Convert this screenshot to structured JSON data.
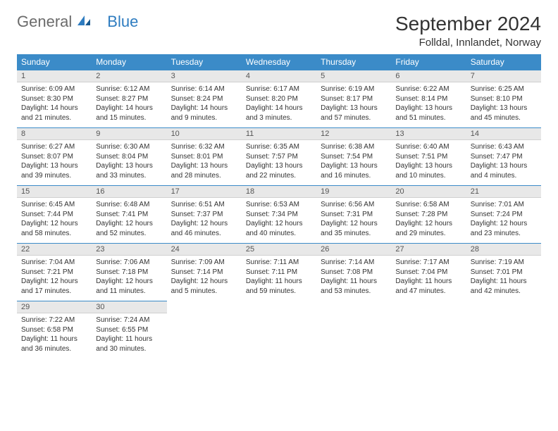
{
  "logo": {
    "gray": "General",
    "blue": "Blue"
  },
  "title": "September 2024",
  "location": "Folldal, Innlandet, Norway",
  "colors": {
    "header_bg": "#3b8bc8",
    "header_text": "#ffffff",
    "daynum_bg": "#e8e8e8",
    "cell_border": "#3b8bc8",
    "logo_gray": "#6b6b6b",
    "logo_blue": "#2e7cc0"
  },
  "day_names": [
    "Sunday",
    "Monday",
    "Tuesday",
    "Wednesday",
    "Thursday",
    "Friday",
    "Saturday"
  ],
  "days": [
    {
      "n": 1,
      "sunrise": "6:09 AM",
      "sunset": "8:30 PM",
      "daylight": "14 hours and 21 minutes."
    },
    {
      "n": 2,
      "sunrise": "6:12 AM",
      "sunset": "8:27 PM",
      "daylight": "14 hours and 15 minutes."
    },
    {
      "n": 3,
      "sunrise": "6:14 AM",
      "sunset": "8:24 PM",
      "daylight": "14 hours and 9 minutes."
    },
    {
      "n": 4,
      "sunrise": "6:17 AM",
      "sunset": "8:20 PM",
      "daylight": "14 hours and 3 minutes."
    },
    {
      "n": 5,
      "sunrise": "6:19 AM",
      "sunset": "8:17 PM",
      "daylight": "13 hours and 57 minutes."
    },
    {
      "n": 6,
      "sunrise": "6:22 AM",
      "sunset": "8:14 PM",
      "daylight": "13 hours and 51 minutes."
    },
    {
      "n": 7,
      "sunrise": "6:25 AM",
      "sunset": "8:10 PM",
      "daylight": "13 hours and 45 minutes."
    },
    {
      "n": 8,
      "sunrise": "6:27 AM",
      "sunset": "8:07 PM",
      "daylight": "13 hours and 39 minutes."
    },
    {
      "n": 9,
      "sunrise": "6:30 AM",
      "sunset": "8:04 PM",
      "daylight": "13 hours and 33 minutes."
    },
    {
      "n": 10,
      "sunrise": "6:32 AM",
      "sunset": "8:01 PM",
      "daylight": "13 hours and 28 minutes."
    },
    {
      "n": 11,
      "sunrise": "6:35 AM",
      "sunset": "7:57 PM",
      "daylight": "13 hours and 22 minutes."
    },
    {
      "n": 12,
      "sunrise": "6:38 AM",
      "sunset": "7:54 PM",
      "daylight": "13 hours and 16 minutes."
    },
    {
      "n": 13,
      "sunrise": "6:40 AM",
      "sunset": "7:51 PM",
      "daylight": "13 hours and 10 minutes."
    },
    {
      "n": 14,
      "sunrise": "6:43 AM",
      "sunset": "7:47 PM",
      "daylight": "13 hours and 4 minutes."
    },
    {
      "n": 15,
      "sunrise": "6:45 AM",
      "sunset": "7:44 PM",
      "daylight": "12 hours and 58 minutes."
    },
    {
      "n": 16,
      "sunrise": "6:48 AM",
      "sunset": "7:41 PM",
      "daylight": "12 hours and 52 minutes."
    },
    {
      "n": 17,
      "sunrise": "6:51 AM",
      "sunset": "7:37 PM",
      "daylight": "12 hours and 46 minutes."
    },
    {
      "n": 18,
      "sunrise": "6:53 AM",
      "sunset": "7:34 PM",
      "daylight": "12 hours and 40 minutes."
    },
    {
      "n": 19,
      "sunrise": "6:56 AM",
      "sunset": "7:31 PM",
      "daylight": "12 hours and 35 minutes."
    },
    {
      "n": 20,
      "sunrise": "6:58 AM",
      "sunset": "7:28 PM",
      "daylight": "12 hours and 29 minutes."
    },
    {
      "n": 21,
      "sunrise": "7:01 AM",
      "sunset": "7:24 PM",
      "daylight": "12 hours and 23 minutes."
    },
    {
      "n": 22,
      "sunrise": "7:04 AM",
      "sunset": "7:21 PM",
      "daylight": "12 hours and 17 minutes."
    },
    {
      "n": 23,
      "sunrise": "7:06 AM",
      "sunset": "7:18 PM",
      "daylight": "12 hours and 11 minutes."
    },
    {
      "n": 24,
      "sunrise": "7:09 AM",
      "sunset": "7:14 PM",
      "daylight": "12 hours and 5 minutes."
    },
    {
      "n": 25,
      "sunrise": "7:11 AM",
      "sunset": "7:11 PM",
      "daylight": "11 hours and 59 minutes."
    },
    {
      "n": 26,
      "sunrise": "7:14 AM",
      "sunset": "7:08 PM",
      "daylight": "11 hours and 53 minutes."
    },
    {
      "n": 27,
      "sunrise": "7:17 AM",
      "sunset": "7:04 PM",
      "daylight": "11 hours and 47 minutes."
    },
    {
      "n": 28,
      "sunrise": "7:19 AM",
      "sunset": "7:01 PM",
      "daylight": "11 hours and 42 minutes."
    },
    {
      "n": 29,
      "sunrise": "7:22 AM",
      "sunset": "6:58 PM",
      "daylight": "11 hours and 36 minutes."
    },
    {
      "n": 30,
      "sunrise": "7:24 AM",
      "sunset": "6:55 PM",
      "daylight": "11 hours and 30 minutes."
    }
  ],
  "labels": {
    "sunrise": "Sunrise: ",
    "sunset": "Sunset: ",
    "daylight": "Daylight: "
  }
}
